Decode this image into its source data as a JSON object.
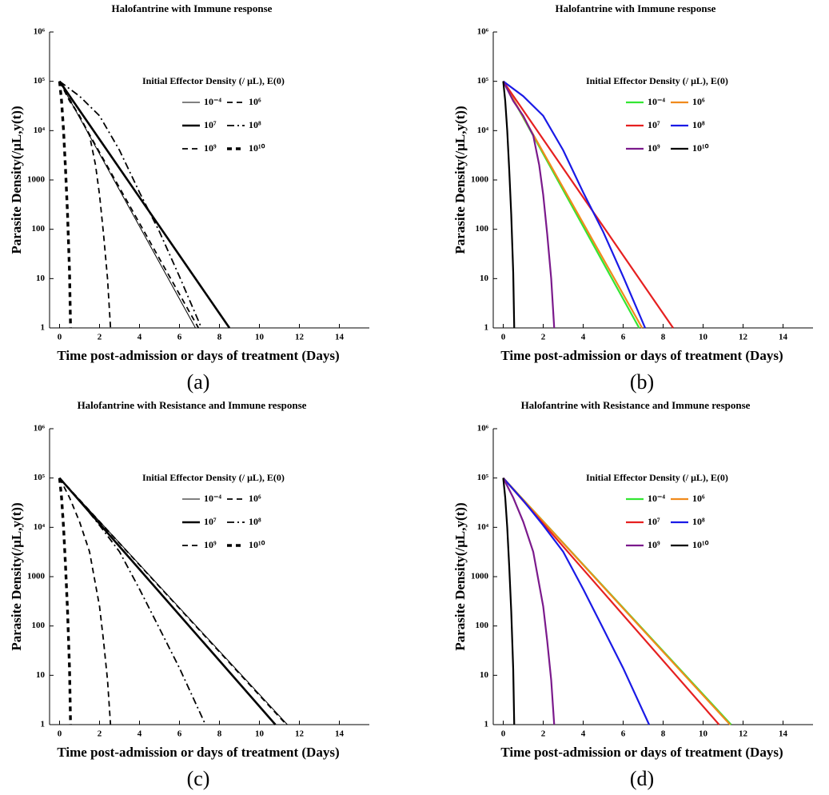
{
  "chart_data": [
    {
      "type": "line",
      "title": "Halofantrine with Immune response",
      "caption": "(a)",
      "xlabel": "Time post-admission or days of treatment (Days)",
      "ylabel": "Parasite Density(/μL,y(t))",
      "legend_title": "Initial Effector Density (/ μL), E(0)",
      "log_y": true,
      "xlim": [
        -0.5,
        15.5
      ],
      "ylim": [
        1,
        1000000
      ],
      "xticks": [
        0,
        2,
        4,
        6,
        8,
        10,
        12,
        14
      ],
      "yticks": [
        1,
        10,
        100,
        1000,
        {
          "value": 10000,
          "label": "10⁴"
        },
        {
          "value": 100000,
          "label": "10⁵"
        },
        {
          "value": 1000000,
          "label": "10⁶"
        }
      ],
      "series": [
        {
          "name": "10⁻⁴",
          "color": "#000000",
          "style": "solid",
          "width": 1,
          "x": [
            0,
            6.8
          ],
          "values": [
            100000,
            1
          ]
        },
        {
          "name": "10⁶",
          "color": "#000000",
          "style": "dashed",
          "width": 1.8,
          "x": [
            0,
            6.95
          ],
          "values": [
            100000,
            1
          ]
        },
        {
          "name": "10⁷",
          "color": "#000000",
          "style": "solid",
          "width": 2.6,
          "x": [
            0,
            8.5
          ],
          "values": [
            100000,
            1
          ]
        },
        {
          "name": "10⁸",
          "color": "#000000",
          "style": "dashdot",
          "width": 1.8,
          "x": [
            0,
            1,
            2,
            3,
            4,
            5,
            6,
            7.1
          ],
          "values": [
            100000,
            50000,
            20000,
            4000,
            560,
            89,
            11,
            1
          ]
        },
        {
          "name": "10⁹",
          "color": "#000000",
          "style": "dashed",
          "width": 1.8,
          "x": [
            0,
            0.5,
            1,
            1.5,
            1.8,
            2,
            2.2,
            2.4,
            2.55
          ],
          "values": [
            100000,
            40000,
            20000,
            8000,
            2000,
            500,
            80,
            10,
            1
          ]
        },
        {
          "name": "10¹⁰",
          "color": "#000000",
          "style": "thickdashed",
          "width": 3.4,
          "x": [
            0,
            0.1,
            0.2,
            0.3,
            0.4,
            0.5,
            0.55
          ],
          "values": [
            100000,
            40000,
            10000,
            1600,
            200,
            13,
            1
          ]
        }
      ]
    },
    {
      "type": "line",
      "title": "Halofantrine with Immune response",
      "caption": "(b)",
      "xlabel": "Time post-admission or days of treatment (Days)",
      "ylabel": "Parasite Density(/μL,y(t))",
      "legend_title": "Initial Effector Density (/ μL), E(0)",
      "log_y": true,
      "xlim": [
        -0.5,
        15.5
      ],
      "ylim": [
        1,
        1000000
      ],
      "xticks": [
        0,
        2,
        4,
        6,
        8,
        10,
        12,
        14
      ],
      "yticks": [
        1,
        10,
        100,
        1000,
        {
          "value": 10000,
          "label": "10⁴"
        },
        {
          "value": 100000,
          "label": "10⁵"
        },
        {
          "value": 1000000,
          "label": "10⁶"
        }
      ],
      "series": [
        {
          "name": "10⁻⁴",
          "color": "#33e633",
          "style": "solid",
          "width": 2.2,
          "x": [
            0,
            6.8
          ],
          "values": [
            100000,
            1
          ]
        },
        {
          "name": "10⁶",
          "color": "#f08a1c",
          "style": "solid",
          "width": 2.2,
          "x": [
            0,
            6.95
          ],
          "values": [
            100000,
            1
          ]
        },
        {
          "name": "10⁷",
          "color": "#e62020",
          "style": "solid",
          "width": 2.2,
          "x": [
            0,
            8.5
          ],
          "values": [
            100000,
            1
          ]
        },
        {
          "name": "10⁸",
          "color": "#1a1ae6",
          "style": "solid",
          "width": 2.2,
          "x": [
            0,
            1,
            2,
            3,
            4,
            5,
            6,
            7.1
          ],
          "values": [
            100000,
            50000,
            20000,
            4000,
            560,
            89,
            11,
            1
          ]
        },
        {
          "name": "10⁹",
          "color": "#7b1a8c",
          "style": "solid",
          "width": 2.2,
          "x": [
            0,
            0.5,
            1,
            1.5,
            1.8,
            2,
            2.2,
            2.4,
            2.55
          ],
          "values": [
            100000,
            40000,
            20000,
            8000,
            2000,
            500,
            80,
            10,
            1
          ]
        },
        {
          "name": "10¹⁰",
          "color": "#000000",
          "style": "solid",
          "width": 2.2,
          "x": [
            0,
            0.1,
            0.2,
            0.3,
            0.4,
            0.5,
            0.55
          ],
          "values": [
            100000,
            40000,
            10000,
            1600,
            200,
            13,
            1
          ]
        }
      ]
    },
    {
      "type": "line",
      "title": "Halofantrine with Resistance and Immune response",
      "caption": "(c)",
      "xlabel": "Time post-admission or days of treatment (Days)",
      "ylabel": "Parasite Density(/μL,y(t))",
      "legend_title": "Initial Effector Density (/ μL), E(0)",
      "log_y": true,
      "xlim": [
        -0.5,
        15.5
      ],
      "ylim": [
        1,
        1000000
      ],
      "xticks": [
        0,
        2,
        4,
        6,
        8,
        10,
        12,
        14
      ],
      "yticks": [
        1,
        10,
        100,
        1000,
        {
          "value": 10000,
          "label": "10⁴"
        },
        {
          "value": 100000,
          "label": "10⁵"
        },
        {
          "value": 1000000,
          "label": "10⁶"
        }
      ],
      "series": [
        {
          "name": "10⁻⁴",
          "color": "#000000",
          "style": "solid",
          "width": 1,
          "x": [
            0,
            11.4
          ],
          "values": [
            100000,
            1
          ]
        },
        {
          "name": "10⁶",
          "color": "#000000",
          "style": "dashed",
          "width": 1.8,
          "x": [
            0,
            11.35
          ],
          "values": [
            100000,
            1
          ]
        },
        {
          "name": "10⁷",
          "color": "#000000",
          "style": "solid",
          "width": 2.6,
          "x": [
            0,
            10.8
          ],
          "values": [
            100000,
            1
          ]
        },
        {
          "name": "10⁸",
          "color": "#000000",
          "style": "dashdot",
          "width": 1.8,
          "x": [
            0,
            1,
            2,
            3,
            4,
            5,
            6,
            7.3
          ],
          "values": [
            100000,
            35000,
            11000,
            3200,
            560,
            89,
            14,
            1
          ]
        },
        {
          "name": "10⁹",
          "color": "#000000",
          "style": "dashed",
          "width": 1.8,
          "x": [
            0,
            0.5,
            1,
            1.5,
            2,
            2.2,
            2.4,
            2.55
          ],
          "values": [
            100000,
            40000,
            13000,
            3200,
            250,
            50,
            8,
            1
          ]
        },
        {
          "name": "10¹⁰",
          "color": "#000000",
          "style": "thickdashed",
          "width": 3.4,
          "x": [
            0,
            0.1,
            0.2,
            0.3,
            0.4,
            0.5,
            0.55
          ],
          "values": [
            100000,
            40000,
            10000,
            1600,
            200,
            13,
            1
          ]
        }
      ]
    },
    {
      "type": "line",
      "title": "Halofantrine with Resistance and Immune response",
      "caption": "(d)",
      "xlabel": "Time post-admission or days of treatment (Days)",
      "ylabel": "Parasite Density(/μL,y(t))",
      "legend_title": "Initial Effector Density (/ μL), E(0)",
      "log_y": true,
      "xlim": [
        -0.5,
        15.5
      ],
      "ylim": [
        1,
        1000000
      ],
      "xticks": [
        0,
        2,
        4,
        6,
        8,
        10,
        12,
        14
      ],
      "yticks": [
        1,
        10,
        100,
        1000,
        {
          "value": 10000,
          "label": "10⁴"
        },
        {
          "value": 100000,
          "label": "10⁵"
        },
        {
          "value": 1000000,
          "label": "10⁶"
        }
      ],
      "series": [
        {
          "name": "10⁻⁴",
          "color": "#33e633",
          "style": "solid",
          "width": 2.2,
          "x": [
            0,
            11.4
          ],
          "values": [
            100000,
            1
          ]
        },
        {
          "name": "10⁶",
          "color": "#f08a1c",
          "style": "solid",
          "width": 2.2,
          "x": [
            0,
            11.35
          ],
          "values": [
            100000,
            1
          ]
        },
        {
          "name": "10⁷",
          "color": "#e62020",
          "style": "solid",
          "width": 2.2,
          "x": [
            0,
            10.8
          ],
          "values": [
            100000,
            1
          ]
        },
        {
          "name": "10⁸",
          "color": "#1a1ae6",
          "style": "solid",
          "width": 2.2,
          "x": [
            0,
            1,
            2,
            3,
            4,
            5,
            6,
            7.3
          ],
          "values": [
            100000,
            35000,
            11000,
            3200,
            560,
            89,
            14,
            1
          ]
        },
        {
          "name": "10⁹",
          "color": "#7b1a8c",
          "style": "solid",
          "width": 2.2,
          "x": [
            0,
            0.5,
            1,
            1.5,
            2,
            2.2,
            2.4,
            2.55
          ],
          "values": [
            100000,
            40000,
            13000,
            3200,
            250,
            50,
            8,
            1
          ]
        },
        {
          "name": "10¹⁰",
          "color": "#000000",
          "style": "solid",
          "width": 2.2,
          "x": [
            0,
            0.1,
            0.2,
            0.3,
            0.4,
            0.5,
            0.55
          ],
          "values": [
            100000,
            40000,
            10000,
            1600,
            200,
            13,
            1
          ]
        }
      ]
    }
  ]
}
